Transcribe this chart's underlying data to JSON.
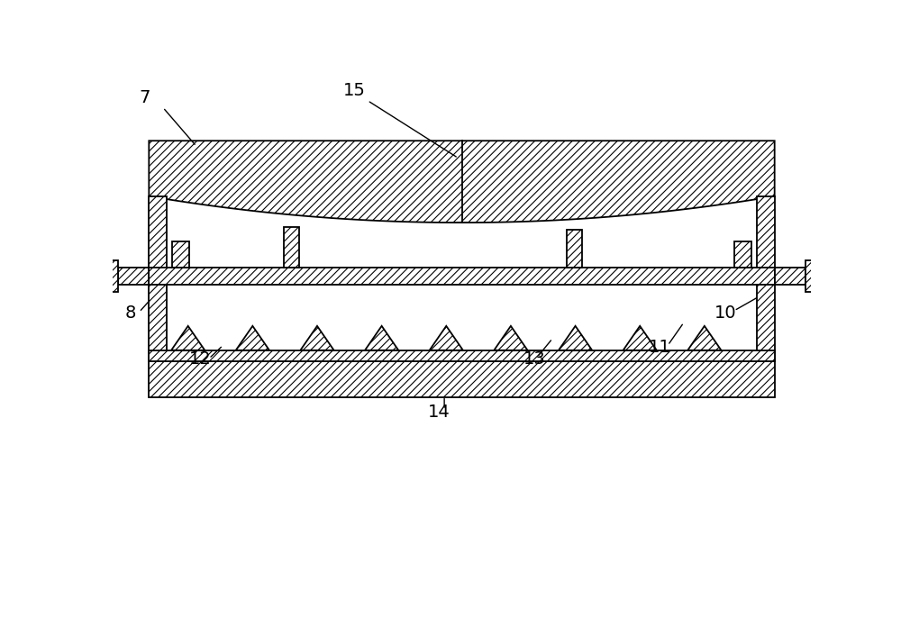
{
  "bg_color": "#ffffff",
  "line_color": "#000000",
  "fig_width": 10.0,
  "fig_height": 6.86,
  "dpi": 100,
  "xlim": [
    0,
    10
  ],
  "ylim": [
    0,
    6.86
  ]
}
